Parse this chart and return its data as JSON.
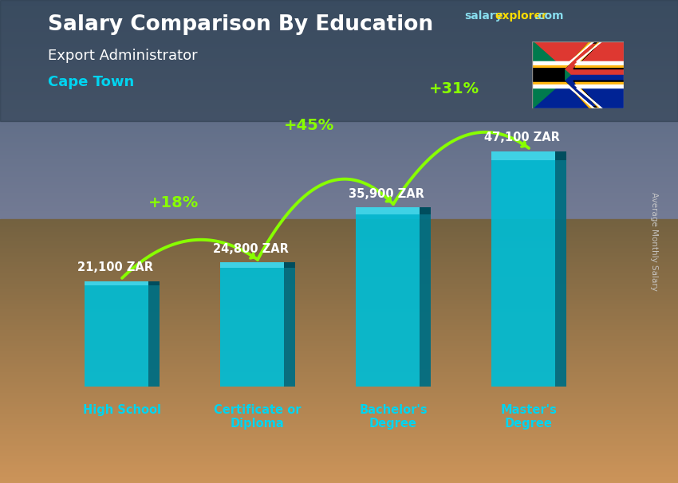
{
  "title": "Salary Comparison By Education",
  "subtitle": "Export Administrator",
  "city": "Cape Town",
  "categories": [
    "High School",
    "Certificate or\nDiploma",
    "Bachelor's\nDegree",
    "Master's\nDegree"
  ],
  "values": [
    21100,
    24800,
    35900,
    47100
  ],
  "labels": [
    "21,100 ZAR",
    "24,800 ZAR",
    "35,900 ZAR",
    "47,100 ZAR"
  ],
  "pct_labels": [
    "+18%",
    "+45%",
    "+31%"
  ],
  "bar_color_main": "#00bcd4",
  "bar_color_light": "#4dd9ec",
  "bar_color_dark": "#0097a7",
  "bar_color_right": "#006e82",
  "bg_top": "#5a7a9a",
  "bg_bottom": "#8a7060",
  "title_color": "#ffffff",
  "subtitle_color": "#ffffff",
  "city_color": "#00d4f0",
  "label_color": "#ffffff",
  "pct_color": "#88ff00",
  "axis_label_color": "#00d4f0",
  "ylabel_text": "Average Monthly Salary",
  "ylim": [
    0,
    58000
  ],
  "bar_width": 0.55,
  "fig_width": 8.5,
  "fig_height": 6.06
}
